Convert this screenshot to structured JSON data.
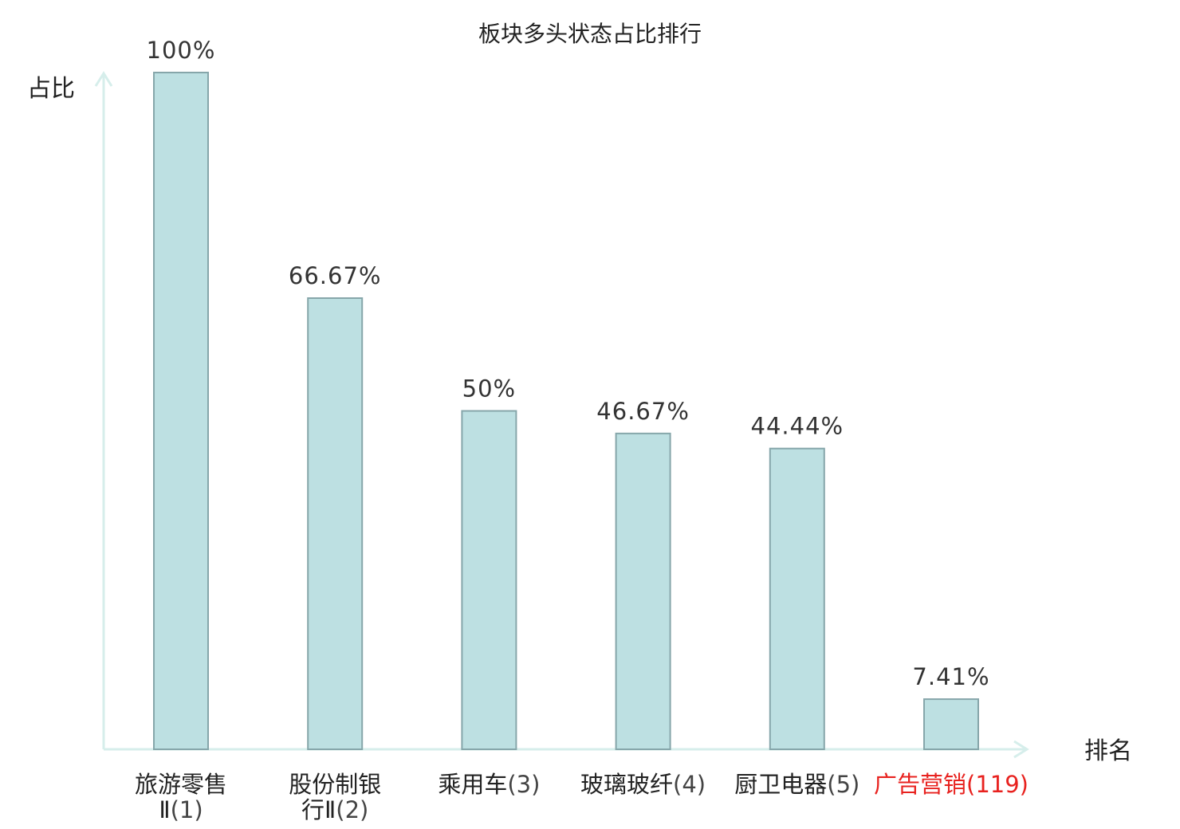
{
  "chart_data": {
    "type": "bar",
    "title": "板块多头状态占比排行",
    "ylabel": "占比",
    "xlabel": "排名",
    "ylim": [
      0,
      100
    ],
    "grid": false,
    "legend": "none",
    "bar_color": "#bde0e2",
    "bar_border_color": "#86a6aa",
    "axis_color": "#d6eeeb",
    "highlight_color": "#e8221f",
    "categories": [
      {
        "name_lines": [
          "旅游零售",
          "Ⅱ(1)"
        ],
        "label": "旅游零售Ⅱ(1)",
        "value": 100,
        "value_label": "100%",
        "highlight": false
      },
      {
        "name_lines": [
          "股份制银",
          "行Ⅱ(2)"
        ],
        "label": "股份制银行Ⅱ(2)",
        "value": 66.67,
        "value_label": "66.67%",
        "highlight": false
      },
      {
        "name_lines": [
          "乘用车(3)"
        ],
        "label": "乘用车(3)",
        "value": 50,
        "value_label": "50%",
        "highlight": false
      },
      {
        "name_lines": [
          "玻璃玻纤(4)"
        ],
        "label": "玻璃玻纤(4)",
        "value": 46.67,
        "value_label": "46.67%",
        "highlight": false
      },
      {
        "name_lines": [
          "厨卫电器(5)"
        ],
        "label": "厨卫电器(5)",
        "value": 44.44,
        "value_label": "44.44%",
        "highlight": false
      },
      {
        "name_lines": [
          "广告营销(119)"
        ],
        "label": "广告营销(119)",
        "value": 7.41,
        "value_label": "7.41%",
        "highlight": true
      }
    ]
  }
}
